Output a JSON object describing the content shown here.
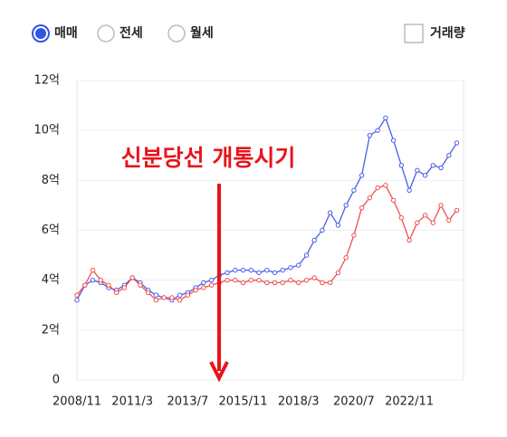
{
  "controls": {
    "options": [
      "매매",
      "전세",
      "월세"
    ],
    "selected": 0,
    "checkbox": "거래량"
  },
  "chart_data": {
    "type": "line",
    "annotation": "신분당선 개통시기",
    "x": [
      "2008/11",
      "2009/3",
      "2009/7",
      "2009/11",
      "2010/3",
      "2010/7",
      "2010/11",
      "2011/3",
      "2011/7",
      "2011/11",
      "2012/3",
      "2012/7",
      "2012/11",
      "2013/3",
      "2013/7",
      "2013/11",
      "2014/3",
      "2014/7",
      "2014/11",
      "2015/3",
      "2015/7",
      "2015/11",
      "2016/3",
      "2016/7",
      "2016/11",
      "2017/3",
      "2017/7",
      "2017/11",
      "2018/3",
      "2018/7",
      "2018/11",
      "2019/3",
      "2019/7",
      "2019/11",
      "2020/3",
      "2020/7",
      "2020/11",
      "2021/3",
      "2021/7",
      "2021/11",
      "2022/3",
      "2022/7",
      "2022/11",
      "2023/3",
      "2023/7",
      "2023/11",
      "2024/3",
      "2024/7",
      "2024/11"
    ],
    "xticks": [
      "2008/11",
      "2011/3",
      "2013/7",
      "2015/11",
      "2018/3",
      "2020/7",
      "2022/11"
    ],
    "series": [
      {
        "color": "#4a5ee8",
        "values": [
          3.2,
          3.8,
          4.0,
          3.9,
          3.7,
          3.6,
          3.8,
          4.1,
          3.9,
          3.6,
          3.4,
          3.3,
          3.2,
          3.4,
          3.5,
          3.7,
          3.9,
          4.0,
          4.2,
          4.3,
          4.4,
          4.4,
          4.4,
          4.3,
          4.4,
          4.3,
          4.4,
          4.5,
          4.6,
          5.0,
          5.6,
          6.0,
          6.7,
          6.2,
          7.0,
          7.6,
          8.2,
          9.8,
          10.0,
          10.5,
          9.6,
          8.6,
          7.6,
          8.4,
          8.2,
          8.6,
          8.5,
          9.0,
          9.5
        ]
      },
      {
        "color": "#f05050",
        "values": [
          3.4,
          3.8,
          4.4,
          4.0,
          3.8,
          3.5,
          3.7,
          4.1,
          3.8,
          3.5,
          3.2,
          3.3,
          3.3,
          3.2,
          3.4,
          3.6,
          3.7,
          3.8,
          3.9,
          4.0,
          4.0,
          3.9,
          4.0,
          4.0,
          3.9,
          3.9,
          3.9,
          4.0,
          3.9,
          4.0,
          4.1,
          3.9,
          3.9,
          4.3,
          4.9,
          5.8,
          6.9,
          7.3,
          7.7,
          7.8,
          7.2,
          6.5,
          5.6,
          6.3,
          6.6,
          6.3,
          7.0,
          6.4,
          6.8
        ]
      }
    ],
    "ylim": [
      0,
      12
    ],
    "yticks": [
      0,
      {
        "value": 2,
        "label": "2억"
      },
      {
        "value": 4,
        "label": "4억"
      },
      {
        "value": 6,
        "label": "6억"
      },
      {
        "value": 8,
        "label": "8억"
      },
      {
        "value": 10,
        "label": "10억"
      },
      {
        "value": 12,
        "label": "12억"
      }
    ],
    "grid": true
  }
}
